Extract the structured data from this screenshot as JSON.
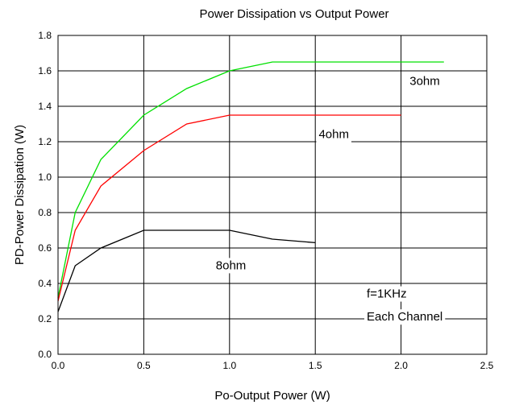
{
  "chart_data": {
    "type": "line",
    "title": "Power Dissipation vs Output Power",
    "xlabel": "Po-Output Power (W)",
    "ylabel": "PD-Power Dissipation (W)",
    "xlim": [
      0,
      2.5
    ],
    "ylim": [
      0,
      1.8
    ],
    "x_ticks": [
      "0.0",
      "0.5",
      "1.0",
      "1.5",
      "2.0",
      "2.5"
    ],
    "y_ticks": [
      "0.0",
      "0.2",
      "0.4",
      "0.6",
      "0.8",
      "1.0",
      "1.2",
      "1.4",
      "1.6",
      "1.8"
    ],
    "grid": true,
    "series": [
      {
        "name": "3ohm",
        "color": "#00e000",
        "x": [
          0,
          0.1,
          0.25,
          0.5,
          0.75,
          1.0,
          1.25,
          1.5,
          2.0,
          2.25
        ],
        "y": [
          0.32,
          0.8,
          1.1,
          1.35,
          1.5,
          1.6,
          1.65,
          1.65,
          1.65,
          1.65
        ]
      },
      {
        "name": "4ohm",
        "color": "#ff0000",
        "x": [
          0,
          0.1,
          0.25,
          0.5,
          0.75,
          1.0,
          1.25,
          1.5,
          2.0
        ],
        "y": [
          0.3,
          0.7,
          0.95,
          1.15,
          1.3,
          1.35,
          1.35,
          1.35,
          1.35
        ]
      },
      {
        "name": "8ohm",
        "color": "#000000",
        "x": [
          0,
          0.1,
          0.25,
          0.5,
          0.75,
          1.0,
          1.25,
          1.5
        ],
        "y": [
          0.24,
          0.5,
          0.6,
          0.7,
          0.7,
          0.7,
          0.65,
          0.63
        ]
      }
    ],
    "annotations": [
      {
        "text": "3ohm",
        "x": 2.05,
        "y": 1.52
      },
      {
        "text": "4ohm",
        "x": 1.52,
        "y": 1.22
      },
      {
        "text": "8ohm",
        "x": 0.92,
        "y": 0.48
      },
      {
        "text": "f=1KHz",
        "x": 1.8,
        "y": 0.32
      },
      {
        "text": "Each Channel",
        "x": 1.8,
        "y": 0.19
      }
    ]
  }
}
